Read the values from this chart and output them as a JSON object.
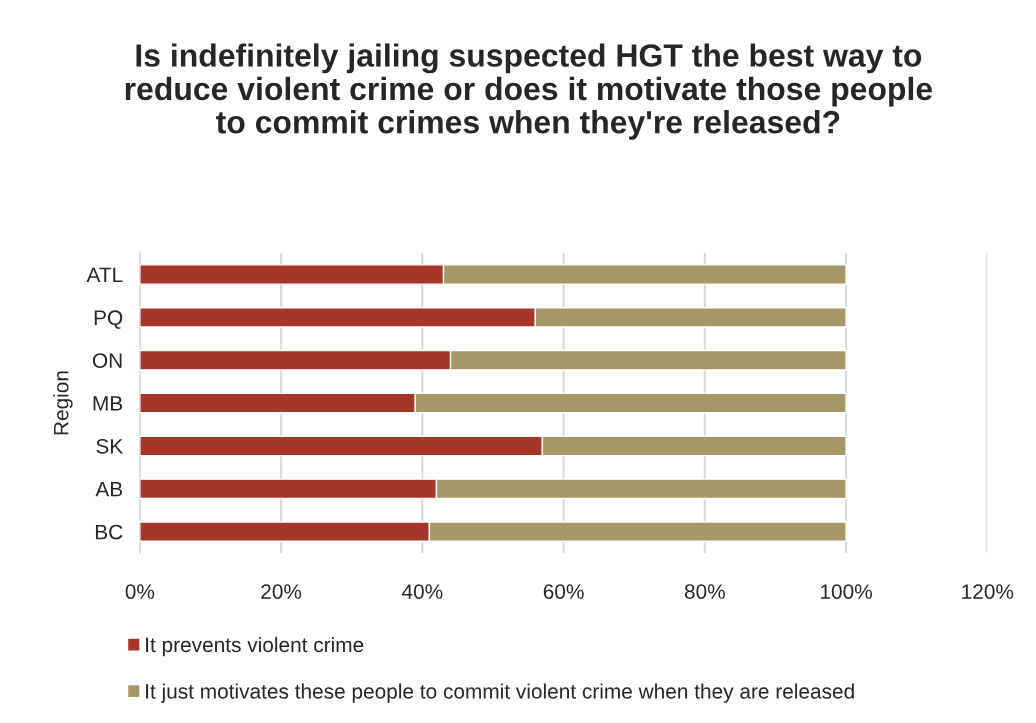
{
  "chart_data": {
    "type": "bar",
    "orientation": "horizontal",
    "stacked": true,
    "title": "Is indefinitely jailing suspected HGT the best way to reduce violent crime or does it motivate those people to commit crimes when they're released?",
    "ylabel": "Region",
    "categories": [
      "ATL",
      "PQ",
      "ON",
      "MB",
      "SK",
      "AB",
      "BC"
    ],
    "series": [
      {
        "name": "It prevents violent crime",
        "color": "#a5372a",
        "values": [
          43,
          56,
          44,
          39,
          57,
          42,
          41
        ]
      },
      {
        "name": "It just motivates these people to commit violent crime when they are released",
        "color": "#a59866",
        "values": [
          57,
          44,
          56,
          61,
          43,
          58,
          59
        ]
      }
    ],
    "xlim": [
      0,
      120
    ],
    "xticks": [
      {
        "value": 0,
        "label": "0%"
      },
      {
        "value": 20,
        "label": "20%"
      },
      {
        "value": 40,
        "label": "40%"
      },
      {
        "value": 60,
        "label": "60%"
      },
      {
        "value": 80,
        "label": "80%"
      },
      {
        "value": 100,
        "label": "100%"
      },
      {
        "value": 120,
        "label": "120%"
      }
    ],
    "grid": "x",
    "legend": "bottom"
  }
}
